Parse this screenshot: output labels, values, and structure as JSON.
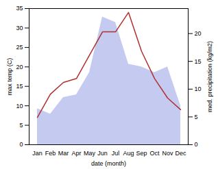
{
  "chart_data": {
    "type": "line",
    "xlabel": "date (month)",
    "ylabel": "max temp (C)",
    "y2label": "med. precipitation (kg/m2)",
    "categories": [
      "Jan",
      "Feb",
      "Mar",
      "Apr",
      "May",
      "Jun",
      "Jul",
      "Aug",
      "Sep",
      "Oct",
      "Nov",
      "Dec"
    ],
    "series": [
      {
        "type": "area",
        "color": "#c5caf0",
        "axis": "y2",
        "values": [
          6.5,
          5.5,
          8.5,
          9,
          13,
          23,
          22,
          14.5,
          14,
          13,
          14,
          7
        ]
      },
      {
        "type": "line",
        "color": "#b03030",
        "values": [
          7,
          13,
          16,
          17,
          23,
          29,
          29,
          34,
          24,
          17,
          12,
          9
        ]
      }
    ],
    "ylim": [
      0,
      35
    ],
    "yticks": [
      0,
      5,
      10,
      15,
      20,
      25,
      30,
      35
    ],
    "y2lim": [
      0,
      24.5
    ],
    "y2ticks": [
      0,
      5,
      10,
      15,
      20
    ]
  }
}
